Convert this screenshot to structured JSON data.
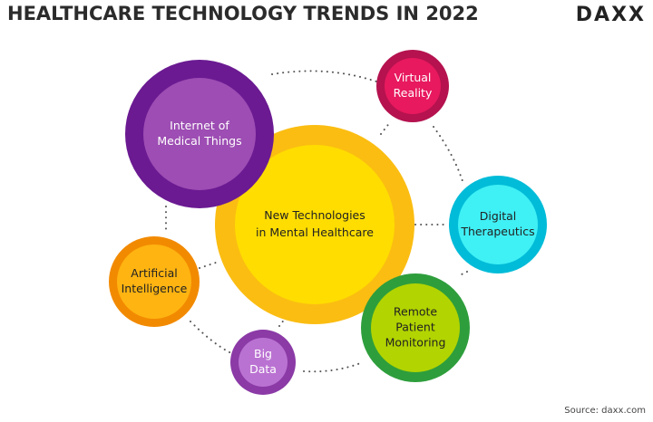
{
  "header": {
    "title": "HEALTHCARE TECHNOLOGY TRENDS IN 2022",
    "logo": "DAXX"
  },
  "nodes": [
    {
      "lines": [
        "New Technologies",
        "in Mental Healthcare"
      ]
    },
    {
      "lines": [
        "Internet of",
        "Medical Things"
      ]
    },
    {
      "lines": [
        "Virtual",
        "Reality"
      ]
    },
    {
      "lines": [
        "Digital",
        "Therapeutics"
      ]
    },
    {
      "lines": [
        "Remote",
        "Patient",
        "Monitoring"
      ]
    },
    {
      "lines": [
        "Big",
        "Data"
      ]
    },
    {
      "lines": [
        "Artificial",
        "Intelligence"
      ]
    }
  ],
  "footer": {
    "source": "Source: daxx.com"
  }
}
